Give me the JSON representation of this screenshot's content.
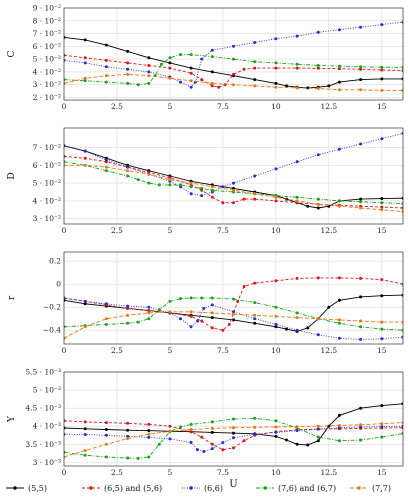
{
  "series_styles": [
    {
      "name": "(5,5)",
      "color": "#000000",
      "dash": ""
    },
    {
      "name": "(6,5) and (5,6)",
      "color": "#d7191c",
      "dash": "3,2"
    },
    {
      "name": "(6,6)",
      "color": "#2b2bd6",
      "dash": "1,1.5"
    },
    {
      "name": "(7,6) and (6,7)",
      "color": "#1aa31a",
      "dash": "4,1.5,1,1.5"
    },
    {
      "name": "(7,7)",
      "color": "#e07b18",
      "dash": "4,2"
    }
  ],
  "chart_data": [
    {
      "type": "line",
      "ylabel": "C",
      "xlabel": "",
      "xlim": [
        0,
        16
      ],
      "ylim": [
        0.018,
        0.09
      ],
      "grid": true,
      "xticks": [
        "0",
        "2.5",
        "5",
        "7.5",
        "10",
        "12.5",
        "15"
      ],
      "xtick_values": [
        0,
        2.5,
        5,
        7.5,
        10,
        12.5,
        15
      ],
      "yticks": [
        "2 · 10⁻²",
        "3 · 10⁻²",
        "4 · 10⁻²",
        "5 · 10⁻²",
        "6 · 10⁻²",
        "7 · 10⁻²",
        "8 · 10⁻²",
        "9 · 10⁻²"
      ],
      "ytick_values": [
        0.02,
        0.03,
        0.04,
        0.05,
        0.06,
        0.07,
        0.08,
        0.09
      ],
      "series": [
        {
          "name": "(5,5)",
          "x": [
            0,
            1,
            2,
            3,
            4,
            5,
            6,
            7,
            8,
            9,
            10,
            10.5,
            11,
            11.5,
            12,
            12.5,
            13,
            14,
            15,
            16
          ],
          "y": [
            0.067,
            0.065,
            0.061,
            0.056,
            0.051,
            0.047,
            0.043,
            0.04,
            0.037,
            0.034,
            0.031,
            0.029,
            0.028,
            0.0275,
            0.028,
            0.029,
            0.032,
            0.034,
            0.0345,
            0.0345
          ]
        },
        {
          "name": "(6,5) and (5,6)",
          "x": [
            0,
            1,
            2,
            3,
            4,
            5,
            6,
            6.5,
            7,
            7.3,
            7.6,
            8,
            8.5,
            9,
            10,
            11,
            12,
            13,
            14,
            15,
            16
          ],
          "y": [
            0.053,
            0.051,
            0.049,
            0.047,
            0.045,
            0.043,
            0.039,
            0.034,
            0.029,
            0.028,
            0.03,
            0.038,
            0.042,
            0.043,
            0.043,
            0.043,
            0.0428,
            0.0425,
            0.042,
            0.0415,
            0.041
          ]
        },
        {
          "name": "(6,6)",
          "x": [
            0,
            1,
            2,
            3,
            4,
            5,
            5.5,
            6,
            6.2,
            6.5,
            7,
            8,
            9,
            10,
            11,
            12,
            13,
            14,
            15,
            16
          ],
          "y": [
            0.049,
            0.047,
            0.044,
            0.042,
            0.04,
            0.036,
            0.032,
            0.028,
            0.032,
            0.05,
            0.057,
            0.06,
            0.063,
            0.066,
            0.068,
            0.071,
            0.073,
            0.075,
            0.077,
            0.079
          ]
        },
        {
          "name": "(7,6) and (6,7)",
          "x": [
            0,
            1,
            2,
            3,
            3.5,
            4,
            4.3,
            4.6,
            5,
            5.5,
            6,
            7,
            8,
            9,
            10,
            11,
            12,
            13,
            14,
            15,
            16
          ],
          "y": [
            0.034,
            0.033,
            0.032,
            0.031,
            0.03,
            0.031,
            0.037,
            0.046,
            0.051,
            0.0535,
            0.0535,
            0.052,
            0.05,
            0.048,
            0.047,
            0.046,
            0.045,
            0.0445,
            0.044,
            0.0437,
            0.0435
          ]
        },
        {
          "name": "(7,7)",
          "x": [
            0,
            1,
            2,
            3,
            4,
            5,
            6,
            7,
            8,
            9,
            10,
            11,
            12,
            13,
            14,
            15,
            16
          ],
          "y": [
            0.031,
            0.035,
            0.037,
            0.038,
            0.037,
            0.035,
            0.033,
            0.031,
            0.03,
            0.029,
            0.028,
            0.0275,
            0.027,
            0.026,
            0.026,
            0.0255,
            0.0255
          ]
        }
      ]
    },
    {
      "type": "line",
      "ylabel": "D",
      "xlabel": "",
      "xlim": [
        0,
        16
      ],
      "ylim": [
        0.027,
        0.081
      ],
      "grid": true,
      "xticks": [
        "0",
        "2.5",
        "5",
        "7.5",
        "10",
        "12.5",
        "15"
      ],
      "xtick_values": [
        0,
        2.5,
        5,
        7.5,
        10,
        12.5,
        15
      ],
      "yticks": [
        "3 · 10⁻²",
        "4 · 10⁻²",
        "5 · 10⁻²",
        "6 · 10⁻²",
        "7 · 10⁻²"
      ],
      "ytick_values": [
        0.03,
        0.04,
        0.05,
        0.06,
        0.07
      ],
      "series": [
        {
          "name": "(5,5)",
          "x": [
            0,
            1,
            2,
            3,
            4,
            5,
            6,
            7,
            8,
            9,
            10,
            10.5,
            11,
            11.5,
            12,
            12.5,
            13,
            14,
            15,
            16
          ],
          "y": [
            0.071,
            0.068,
            0.064,
            0.06,
            0.057,
            0.054,
            0.051,
            0.049,
            0.047,
            0.045,
            0.043,
            0.041,
            0.039,
            0.037,
            0.036,
            0.037,
            0.04,
            0.041,
            0.0413,
            0.0415
          ]
        },
        {
          "name": "(6,5) and (5,6)",
          "x": [
            0,
            1,
            2,
            3,
            4,
            5,
            6,
            6.5,
            7,
            7.5,
            8,
            8.5,
            9,
            10,
            11,
            12,
            13,
            14,
            15,
            16
          ],
          "y": [
            0.065,
            0.064,
            0.062,
            0.059,
            0.056,
            0.053,
            0.049,
            0.046,
            0.042,
            0.039,
            0.039,
            0.041,
            0.041,
            0.04,
            0.039,
            0.038,
            0.0375,
            0.037,
            0.0365,
            0.036
          ]
        },
        {
          "name": "(6,6)",
          "x": [
            0,
            1,
            2,
            3,
            4,
            5,
            5.5,
            6,
            6.5,
            7,
            7.5,
            8,
            9,
            10,
            11,
            12,
            13,
            14,
            15,
            16
          ],
          "y": [
            0.071,
            0.068,
            0.063,
            0.059,
            0.055,
            0.051,
            0.048,
            0.044,
            0.043,
            0.045,
            0.048,
            0.05,
            0.054,
            0.058,
            0.062,
            0.066,
            0.069,
            0.072,
            0.075,
            0.078
          ]
        },
        {
          "name": "(7,6) and (6,7)",
          "x": [
            0,
            1,
            2,
            3,
            3.5,
            4,
            4.5,
            5,
            5.5,
            6,
            6.5,
            7,
            8,
            9,
            10,
            11,
            12,
            13,
            14,
            15,
            16
          ],
          "y": [
            0.062,
            0.06,
            0.057,
            0.054,
            0.052,
            0.05,
            0.049,
            0.049,
            0.049,
            0.048,
            0.047,
            0.046,
            0.045,
            0.044,
            0.043,
            0.042,
            0.041,
            0.04,
            0.0395,
            0.039,
            0.0385
          ]
        },
        {
          "name": "(7,7)",
          "x": [
            0,
            1,
            2,
            3,
            4,
            5,
            6,
            7,
            8,
            9,
            10,
            11,
            12,
            13,
            14,
            15,
            16
          ],
          "y": [
            0.06,
            0.06,
            0.059,
            0.057,
            0.055,
            0.052,
            0.05,
            0.048,
            0.046,
            0.044,
            0.042,
            0.04,
            0.038,
            0.037,
            0.036,
            0.035,
            0.034
          ]
        }
      ]
    },
    {
      "type": "line",
      "ylabel": "r",
      "xlabel": "",
      "xlim": [
        0,
        16
      ],
      "ylim": [
        -0.52,
        0.28
      ],
      "grid": true,
      "xticks": [
        "0",
        "2.5",
        "5",
        "7.5",
        "10",
        "12.5",
        "15"
      ],
      "xtick_values": [
        0,
        2.5,
        5,
        7.5,
        10,
        12.5,
        15
      ],
      "yticks": [
        "−0.4",
        "−0.2",
        "0",
        "0.2"
      ],
      "ytick_values": [
        -0.4,
        -0.2,
        0,
        0.2
      ],
      "series": [
        {
          "name": "(5,5)",
          "x": [
            0,
            1,
            2,
            3,
            4,
            5,
            6,
            7,
            8,
            9,
            10,
            10.5,
            11,
            11.5,
            12,
            12.5,
            13,
            14,
            15,
            16
          ],
          "y": [
            -0.14,
            -0.17,
            -0.19,
            -0.21,
            -0.23,
            -0.25,
            -0.27,
            -0.29,
            -0.31,
            -0.34,
            -0.37,
            -0.39,
            -0.41,
            -0.38,
            -0.3,
            -0.2,
            -0.14,
            -0.11,
            -0.1,
            -0.095
          ]
        },
        {
          "name": "(6,5) and (5,6)",
          "x": [
            0,
            1,
            2,
            3,
            4,
            5,
            6,
            6.5,
            7,
            7.5,
            7.8,
            8.2,
            8.5,
            9,
            10,
            11,
            12,
            13,
            14,
            15,
            16
          ],
          "y": [
            -0.12,
            -0.15,
            -0.18,
            -0.21,
            -0.23,
            -0.25,
            -0.28,
            -0.32,
            -0.38,
            -0.4,
            -0.35,
            -0.15,
            -0.02,
            0.01,
            0.03,
            0.05,
            0.055,
            0.055,
            0.05,
            0.04,
            0.0
          ]
        },
        {
          "name": "(6,6)",
          "x": [
            0,
            1,
            2,
            3,
            4,
            5,
            5.5,
            6,
            6.3,
            6.6,
            7,
            8,
            9,
            10,
            11,
            12,
            13,
            14,
            15,
            16
          ],
          "y": [
            -0.12,
            -0.15,
            -0.17,
            -0.19,
            -0.2,
            -0.25,
            -0.3,
            -0.37,
            -0.32,
            -0.21,
            -0.18,
            -0.24,
            -0.3,
            -0.35,
            -0.4,
            -0.44,
            -0.47,
            -0.48,
            -0.475,
            -0.46
          ]
        },
        {
          "name": "(7,6) and (6,7)",
          "x": [
            0,
            1,
            2,
            3,
            3.5,
            4,
            4.5,
            5,
            5.5,
            6,
            6.5,
            7,
            8,
            9,
            10,
            11,
            12,
            13,
            14,
            15,
            16
          ],
          "y": [
            -0.37,
            -0.36,
            -0.35,
            -0.34,
            -0.33,
            -0.3,
            -0.22,
            -0.15,
            -0.125,
            -0.12,
            -0.12,
            -0.12,
            -0.13,
            -0.16,
            -0.2,
            -0.25,
            -0.3,
            -0.34,
            -0.37,
            -0.39,
            -0.4
          ]
        },
        {
          "name": "(7,7)",
          "x": [
            0,
            1,
            2,
            3,
            4,
            5,
            6,
            7,
            8,
            9,
            10,
            11,
            12,
            13,
            14,
            15,
            16
          ],
          "y": [
            -0.47,
            -0.37,
            -0.3,
            -0.27,
            -0.25,
            -0.24,
            -0.24,
            -0.25,
            -0.26,
            -0.27,
            -0.28,
            -0.29,
            -0.3,
            -0.31,
            -0.32,
            -0.33,
            -0.33
          ]
        }
      ]
    },
    {
      "type": "line",
      "ylabel": "Y",
      "xlabel": "U",
      "xlim": [
        0,
        16
      ],
      "ylim": [
        0.0029,
        0.0055
      ],
      "grid": true,
      "xticks": [
        "0",
        "2.5",
        "5",
        "7.5",
        "10",
        "12.5",
        "15"
      ],
      "xtick_values": [
        0,
        2.5,
        5,
        7.5,
        10,
        12.5,
        15
      ],
      "yticks": [
        "3 · 10⁻³",
        "3.5 · 10⁻³",
        "4 · 10⁻³",
        "4.5 · 10⁻³",
        "5 · 10⁻³",
        "5.5 · 10⁻³"
      ],
      "ytick_values": [
        0.003,
        0.0035,
        0.004,
        0.0045,
        0.005,
        0.0055
      ],
      "series": [
        {
          "name": "(5,5)",
          "x": [
            0,
            1,
            2,
            3,
            4,
            5,
            6,
            7,
            8,
            9,
            10,
            10.5,
            11,
            11.5,
            12,
            12.5,
            13,
            14,
            15,
            16
          ],
          "y": [
            0.00395,
            0.00393,
            0.00391,
            0.00389,
            0.00388,
            0.00386,
            0.00385,
            0.00383,
            0.00381,
            0.00379,
            0.00372,
            0.00362,
            0.0035,
            0.00348,
            0.0036,
            0.004,
            0.0043,
            0.0045,
            0.00457,
            0.00462
          ]
        },
        {
          "name": "(6,5) and (5,6)",
          "x": [
            0,
            1,
            2,
            3,
            4,
            5,
            6,
            6.5,
            7,
            7.5,
            8,
            8.5,
            9,
            10,
            11,
            12,
            13,
            14,
            15,
            16
          ],
          "y": [
            0.00415,
            0.00412,
            0.0041,
            0.00408,
            0.00405,
            0.004,
            0.00385,
            0.0037,
            0.0035,
            0.00335,
            0.0034,
            0.0036,
            0.00375,
            0.00385,
            0.0039,
            0.00392,
            0.00393,
            0.00394,
            0.00395,
            0.00396
          ]
        },
        {
          "name": "(6,6)",
          "x": [
            0,
            1,
            2,
            3,
            4,
            5,
            6,
            6.3,
            6.6,
            7,
            7.5,
            8,
            9,
            10,
            11,
            12,
            13,
            14,
            15,
            16
          ],
          "y": [
            0.00378,
            0.00377,
            0.00375,
            0.00372,
            0.00369,
            0.00365,
            0.00355,
            0.00335,
            0.0033,
            0.00338,
            0.00355,
            0.00368,
            0.00378,
            0.00383,
            0.00388,
            0.00392,
            0.00396,
            0.00398,
            0.00399,
            0.004
          ]
        },
        {
          "name": "(7,6) and (6,7)",
          "x": [
            0,
            1,
            2,
            3,
            3.5,
            4,
            4.5,
            5,
            5.5,
            6,
            7,
            8,
            9,
            10,
            11,
            12,
            13,
            14,
            15,
            16
          ],
          "y": [
            0.00328,
            0.0032,
            0.00315,
            0.00312,
            0.00311,
            0.00315,
            0.0035,
            0.00385,
            0.00398,
            0.00405,
            0.00412,
            0.0042,
            0.00422,
            0.00415,
            0.00395,
            0.0037,
            0.0036,
            0.00362,
            0.0037,
            0.0038
          ]
        },
        {
          "name": "(7,7)",
          "x": [
            0,
            1,
            2,
            3,
            4,
            5,
            6,
            7,
            8,
            9,
            10,
            11,
            12,
            13,
            14,
            15,
            16
          ],
          "y": [
            0.00315,
            0.00333,
            0.0035,
            0.00366,
            0.00378,
            0.00386,
            0.00391,
            0.00394,
            0.00396,
            0.00397,
            0.00398,
            0.00399,
            0.004,
            0.00402,
            0.00404,
            0.00407,
            0.0041
          ]
        }
      ]
    }
  ]
}
